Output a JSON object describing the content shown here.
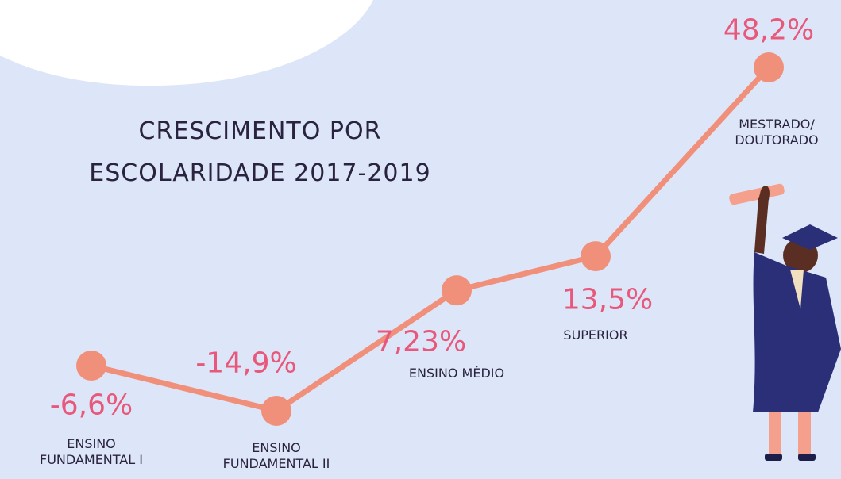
{
  "chart_data": {
    "type": "line",
    "title": "CRESCIMENTO POR ESCOLARIDADE 2017-2019",
    "categories": [
      "ENSINO FUNDAMENTAL I",
      "ENSINO FUNDAMENTAL II",
      "ENSINO MÉDIO",
      "SUPERIOR",
      "MESTRADO/ DOUTORADO"
    ],
    "values": [
      -6.6,
      -14.9,
      7.23,
      13.5,
      48.2
    ],
    "value_labels": [
      "-6,6%",
      "-14,9%",
      "7,23%",
      "13,5%",
      "48,2%"
    ],
    "color": "#f0907a",
    "label_color": "#e8587a"
  }
}
